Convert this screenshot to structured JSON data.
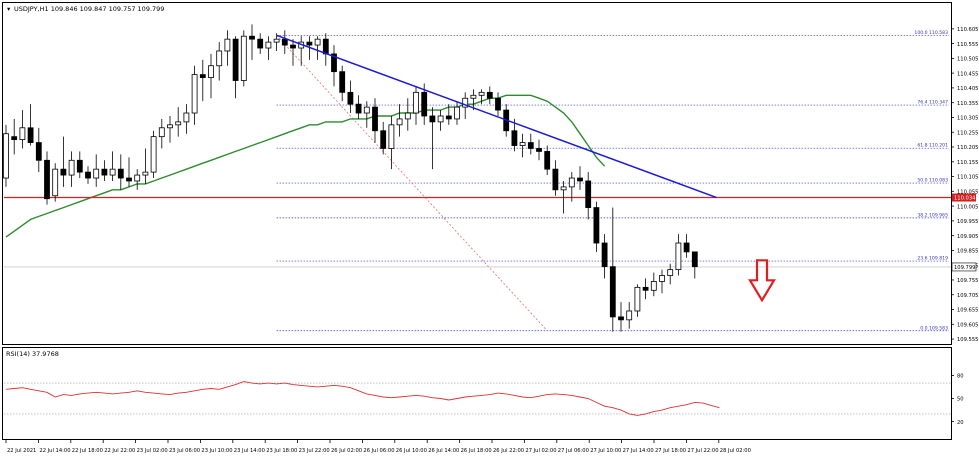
{
  "header": {
    "symbol_line": "USDJPY,H1  109.846 109.847 109.757 109.799",
    "dropdown_icon": "triangle-down-icon"
  },
  "colors": {
    "candle_outline": "#000000",
    "bull_fill": "#ffffff",
    "bear_fill": "#000000",
    "ma_line": "#2e8b2e",
    "trendline": "#1a1ad6",
    "fib_levels": "#3434c8",
    "fib_diagonal": "#e07070",
    "support_line": "#d42020",
    "arrow": "#e02020",
    "rsi_line": "#e03030",
    "rsi_levels": "#a0a0a0",
    "price_label_bg": "#d42020"
  },
  "chart_data": [
    {
      "type": "candlestick",
      "symbol": "USDJPY",
      "timeframe": "H1",
      "ohlc_header": {
        "open": 109.846,
        "high": 109.847,
        "low": 109.757,
        "close": 109.799
      },
      "y_axis_ticks": [
        "110.605",
        "110.555",
        "110.505",
        "110.455",
        "110.405",
        "110.355",
        "110.305",
        "110.255",
        "110.205",
        "110.155",
        "110.105",
        "110.055",
        "110.005",
        "109.955",
        "109.905",
        "109.855",
        "109.805",
        "109.755",
        "109.705",
        "109.655",
        "109.605",
        "109.555"
      ],
      "ylim": [
        109.545,
        110.645
      ],
      "x_axis_ticks": [
        "22 Jul 2021",
        "22 Jul 14:00",
        "22 Jul 18:00",
        "22 Jul 22:00",
        "23 Jul 02:00",
        "23 Jul 06:00",
        "23 Jul 10:00",
        "23 Jul 14:00",
        "23 Jul 18:00",
        "23 Jul 22:00",
        "26 Jul 02:00",
        "26 Jul 06:00",
        "26 Jul 10:00",
        "26 Jul 14:00",
        "26 Jul 18:00",
        "26 Jul 22:00",
        "27 Jul 02:00",
        "27 Jul 06:00",
        "27 Jul 10:00",
        "27 Jul 14:00",
        "27 Jul 18:00",
        "27 Jul 22:00",
        "28 Jul 02:00"
      ],
      "candles": [
        {
          "o": 110.1,
          "h": 110.28,
          "l": 110.07,
          "c": 110.25
        },
        {
          "o": 110.24,
          "h": 110.3,
          "l": 110.18,
          "c": 110.23
        },
        {
          "o": 110.23,
          "h": 110.33,
          "l": 110.2,
          "c": 110.27
        },
        {
          "o": 110.27,
          "h": 110.35,
          "l": 110.21,
          "c": 110.22
        },
        {
          "o": 110.22,
          "h": 110.27,
          "l": 110.12,
          "c": 110.16
        },
        {
          "o": 110.16,
          "h": 110.19,
          "l": 110.01,
          "c": 110.03
        },
        {
          "o": 110.04,
          "h": 110.15,
          "l": 110.02,
          "c": 110.13
        },
        {
          "o": 110.13,
          "h": 110.24,
          "l": 110.07,
          "c": 110.11
        },
        {
          "o": 110.11,
          "h": 110.19,
          "l": 110.07,
          "c": 110.16
        },
        {
          "o": 110.16,
          "h": 110.19,
          "l": 110.1,
          "c": 110.12
        },
        {
          "o": 110.12,
          "h": 110.14,
          "l": 110.08,
          "c": 110.1
        },
        {
          "o": 110.1,
          "h": 110.18,
          "l": 110.07,
          "c": 110.13
        },
        {
          "o": 110.13,
          "h": 110.16,
          "l": 110.09,
          "c": 110.11
        },
        {
          "o": 110.11,
          "h": 110.19,
          "l": 110.09,
          "c": 110.13
        },
        {
          "o": 110.13,
          "h": 110.18,
          "l": 110.06,
          "c": 110.1
        },
        {
          "o": 110.1,
          "h": 110.17,
          "l": 110.07,
          "c": 110.09
        },
        {
          "o": 110.09,
          "h": 110.13,
          "l": 110.06,
          "c": 110.11
        },
        {
          "o": 110.11,
          "h": 110.2,
          "l": 110.08,
          "c": 110.12
        },
        {
          "o": 110.12,
          "h": 110.26,
          "l": 110.1,
          "c": 110.24
        },
        {
          "o": 110.24,
          "h": 110.3,
          "l": 110.2,
          "c": 110.27
        },
        {
          "o": 110.27,
          "h": 110.31,
          "l": 110.22,
          "c": 110.28
        },
        {
          "o": 110.28,
          "h": 110.34,
          "l": 110.24,
          "c": 110.29
        },
        {
          "o": 110.29,
          "h": 110.35,
          "l": 110.25,
          "c": 110.32
        },
        {
          "o": 110.32,
          "h": 110.48,
          "l": 110.28,
          "c": 110.45
        },
        {
          "o": 110.45,
          "h": 110.5,
          "l": 110.36,
          "c": 110.44
        },
        {
          "o": 110.44,
          "h": 110.52,
          "l": 110.37,
          "c": 110.48
        },
        {
          "o": 110.48,
          "h": 110.56,
          "l": 110.43,
          "c": 110.53
        },
        {
          "o": 110.53,
          "h": 110.6,
          "l": 110.48,
          "c": 110.57
        },
        {
          "o": 110.57,
          "h": 110.58,
          "l": 110.37,
          "c": 110.43
        },
        {
          "o": 110.43,
          "h": 110.6,
          "l": 110.41,
          "c": 110.58
        },
        {
          "o": 110.58,
          "h": 110.62,
          "l": 110.5,
          "c": 110.57
        },
        {
          "o": 110.57,
          "h": 110.59,
          "l": 110.52,
          "c": 110.54
        },
        {
          "o": 110.54,
          "h": 110.58,
          "l": 110.5,
          "c": 110.56
        },
        {
          "o": 110.56,
          "h": 110.59,
          "l": 110.53,
          "c": 110.57
        },
        {
          "o": 110.57,
          "h": 110.6,
          "l": 110.52,
          "c": 110.55
        },
        {
          "o": 110.55,
          "h": 110.57,
          "l": 110.48,
          "c": 110.54
        },
        {
          "o": 110.54,
          "h": 110.58,
          "l": 110.48,
          "c": 110.56
        },
        {
          "o": 110.56,
          "h": 110.58,
          "l": 110.5,
          "c": 110.55
        },
        {
          "o": 110.55,
          "h": 110.58,
          "l": 110.5,
          "c": 110.57
        },
        {
          "o": 110.57,
          "h": 110.59,
          "l": 110.48,
          "c": 110.52
        },
        {
          "o": 110.52,
          "h": 110.55,
          "l": 110.41,
          "c": 110.46
        },
        {
          "o": 110.46,
          "h": 110.48,
          "l": 110.36,
          "c": 110.39
        },
        {
          "o": 110.39,
          "h": 110.43,
          "l": 110.32,
          "c": 110.35
        },
        {
          "o": 110.35,
          "h": 110.38,
          "l": 110.3,
          "c": 110.32
        },
        {
          "o": 110.32,
          "h": 110.36,
          "l": 110.27,
          "c": 110.34
        },
        {
          "o": 110.34,
          "h": 110.37,
          "l": 110.22,
          "c": 110.26
        },
        {
          "o": 110.26,
          "h": 110.29,
          "l": 110.18,
          "c": 110.2
        },
        {
          "o": 110.2,
          "h": 110.31,
          "l": 110.13,
          "c": 110.28
        },
        {
          "o": 110.28,
          "h": 110.35,
          "l": 110.24,
          "c": 110.3
        },
        {
          "o": 110.3,
          "h": 110.37,
          "l": 110.26,
          "c": 110.32
        },
        {
          "o": 110.32,
          "h": 110.41,
          "l": 110.28,
          "c": 110.39
        },
        {
          "o": 110.39,
          "h": 110.42,
          "l": 110.28,
          "c": 110.31
        },
        {
          "o": 110.31,
          "h": 110.34,
          "l": 110.13,
          "c": 110.29
        },
        {
          "o": 110.29,
          "h": 110.33,
          "l": 110.26,
          "c": 110.31
        },
        {
          "o": 110.31,
          "h": 110.35,
          "l": 110.28,
          "c": 110.3
        },
        {
          "o": 110.3,
          "h": 110.36,
          "l": 110.28,
          "c": 110.34
        },
        {
          "o": 110.34,
          "h": 110.39,
          "l": 110.3,
          "c": 110.37
        },
        {
          "o": 110.37,
          "h": 110.4,
          "l": 110.33,
          "c": 110.38
        },
        {
          "o": 110.38,
          "h": 110.4,
          "l": 110.35,
          "c": 110.39
        },
        {
          "o": 110.39,
          "h": 110.41,
          "l": 110.35,
          "c": 110.37
        },
        {
          "o": 110.37,
          "h": 110.39,
          "l": 110.31,
          "c": 110.33
        },
        {
          "o": 110.33,
          "h": 110.35,
          "l": 110.24,
          "c": 110.26
        },
        {
          "o": 110.26,
          "h": 110.3,
          "l": 110.19,
          "c": 110.21
        },
        {
          "o": 110.21,
          "h": 110.25,
          "l": 110.17,
          "c": 110.22
        },
        {
          "o": 110.22,
          "h": 110.25,
          "l": 110.18,
          "c": 110.2
        },
        {
          "o": 110.2,
          "h": 110.23,
          "l": 110.16,
          "c": 110.19
        },
        {
          "o": 110.19,
          "h": 110.21,
          "l": 110.11,
          "c": 110.13
        },
        {
          "o": 110.13,
          "h": 110.16,
          "l": 110.04,
          "c": 110.06
        },
        {
          "o": 110.06,
          "h": 110.09,
          "l": 109.98,
          "c": 110.07
        },
        {
          "o": 110.07,
          "h": 110.12,
          "l": 110.02,
          "c": 110.1
        },
        {
          "o": 110.1,
          "h": 110.14,
          "l": 110.06,
          "c": 110.09
        },
        {
          "o": 110.09,
          "h": 110.12,
          "l": 109.96,
          "c": 110.0
        },
        {
          "o": 110.0,
          "h": 110.02,
          "l": 109.85,
          "c": 109.88
        },
        {
          "o": 109.88,
          "h": 109.91,
          "l": 109.76,
          "c": 109.8
        },
        {
          "o": 109.8,
          "h": 110.0,
          "l": 109.58,
          "c": 109.63
        },
        {
          "o": 109.63,
          "h": 109.68,
          "l": 109.58,
          "c": 109.62
        },
        {
          "o": 109.62,
          "h": 109.68,
          "l": 109.59,
          "c": 109.65
        },
        {
          "o": 109.65,
          "h": 109.74,
          "l": 109.63,
          "c": 109.73
        },
        {
          "o": 109.73,
          "h": 109.76,
          "l": 109.69,
          "c": 109.72
        },
        {
          "o": 109.72,
          "h": 109.78,
          "l": 109.7,
          "c": 109.75
        },
        {
          "o": 109.75,
          "h": 109.79,
          "l": 109.71,
          "c": 109.77
        },
        {
          "o": 109.77,
          "h": 109.81,
          "l": 109.74,
          "c": 109.79
        },
        {
          "o": 109.79,
          "h": 109.91,
          "l": 109.77,
          "c": 109.88
        },
        {
          "o": 109.88,
          "h": 109.91,
          "l": 109.83,
          "c": 109.85
        },
        {
          "o": 109.85,
          "h": 109.85,
          "l": 109.76,
          "c": 109.8
        }
      ],
      "moving_average": [
        109.9,
        109.92,
        109.94,
        109.96,
        109.97,
        109.98,
        109.99,
        110.0,
        110.01,
        110.02,
        110.03,
        110.04,
        110.05,
        110.06,
        110.06,
        110.07,
        110.08,
        110.08,
        110.09,
        110.1,
        110.11,
        110.12,
        110.13,
        110.14,
        110.15,
        110.16,
        110.17,
        110.18,
        110.19,
        110.2,
        110.21,
        110.22,
        110.23,
        110.24,
        110.25,
        110.26,
        110.27,
        110.28,
        110.28,
        110.29,
        110.29,
        110.29,
        110.3,
        110.3,
        110.3,
        110.31,
        110.31,
        110.31,
        110.32,
        110.32,
        110.32,
        110.33,
        110.33,
        110.33,
        110.34,
        110.34,
        110.35,
        110.35,
        110.36,
        110.37,
        110.37,
        110.38,
        110.38,
        110.38,
        110.38,
        110.37,
        110.36,
        110.34,
        110.32,
        110.29,
        110.25,
        110.21,
        110.17,
        110.14
      ],
      "fibonacci": [
        {
          "label": "100.0 110.583",
          "value": 110.583
        },
        {
          "label": "76.4 110.347",
          "value": 110.347
        },
        {
          "label": "61.8 110.201",
          "value": 110.201
        },
        {
          "label": "50.0 110.083",
          "value": 110.083
        },
        {
          "label": "38.2 109.965",
          "value": 109.965
        },
        {
          "label": "23.6 109.819",
          "value": 109.819
        },
        {
          "label": "0.0 109.583",
          "value": 109.583
        }
      ],
      "horizontal_line": {
        "value": 110.034,
        "label": "110.034"
      },
      "current_price": {
        "value": 109.799,
        "label": "109.799"
      },
      "trendline": {
        "from_candle": 33,
        "from_value": 110.583,
        "to_candle": 83,
        "to_value": 110.034
      },
      "fib_diagonal": {
        "from_candle": 33,
        "from_value": 110.583,
        "to_candle": 66,
        "to_value": 109.583
      },
      "arrow": {
        "direction": "down",
        "candle": 90,
        "value": 109.72
      }
    },
    {
      "type": "line",
      "label": "RSI(14) 37.9768",
      "y_ticks": [
        "80",
        "50",
        "20"
      ],
      "ylim": [
        0,
        100
      ],
      "levels": [
        30,
        70
      ],
      "values": [
        62,
        63,
        64,
        62,
        60,
        58,
        52,
        55,
        54,
        56,
        57,
        58,
        57,
        56,
        57,
        58,
        60,
        58,
        57,
        56,
        55,
        57,
        58,
        60,
        62,
        63,
        62,
        65,
        68,
        72,
        70,
        69,
        70,
        69,
        70,
        68,
        67,
        66,
        65,
        66,
        67,
        66,
        64,
        60,
        56,
        54,
        52,
        51,
        52,
        53,
        54,
        53,
        51,
        50,
        48,
        50,
        52,
        53,
        54,
        55,
        57,
        56,
        54,
        52,
        51,
        53,
        55,
        56,
        55,
        54,
        52,
        50,
        45,
        40,
        38,
        35,
        30,
        28,
        30,
        33,
        35,
        38,
        40,
        42,
        45,
        44,
        41,
        38
      ]
    }
  ]
}
